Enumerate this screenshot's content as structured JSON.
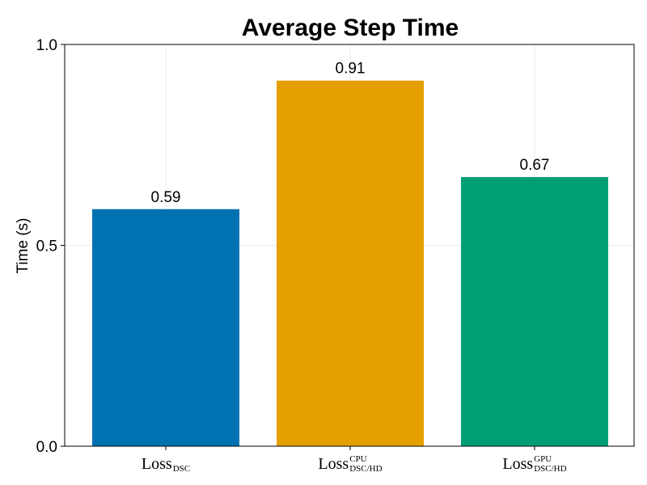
{
  "chart_data": {
    "type": "bar",
    "title": "Average Step Time",
    "xlabel": "",
    "ylabel": "Time (s)",
    "ylim": [
      0,
      1
    ],
    "yticks": [
      0,
      0.5,
      1
    ],
    "ytick_labels": [
      "0.0",
      "0.5",
      "1.0"
    ],
    "grid": true,
    "categories": [
      {
        "base": "Loss",
        "sub": "DSC",
        "sup": ""
      },
      {
        "base": "Loss",
        "sub": "DSC/HD",
        "sup": "CPU"
      },
      {
        "base": "Loss",
        "sub": "DSC/HD",
        "sup": "GPU"
      }
    ],
    "values": [
      0.59,
      0.91,
      0.67
    ],
    "value_labels": [
      "0.59",
      "0.91",
      "0.67"
    ],
    "colors": [
      "#0072b2",
      "#e69f00",
      "#009e73"
    ]
  }
}
